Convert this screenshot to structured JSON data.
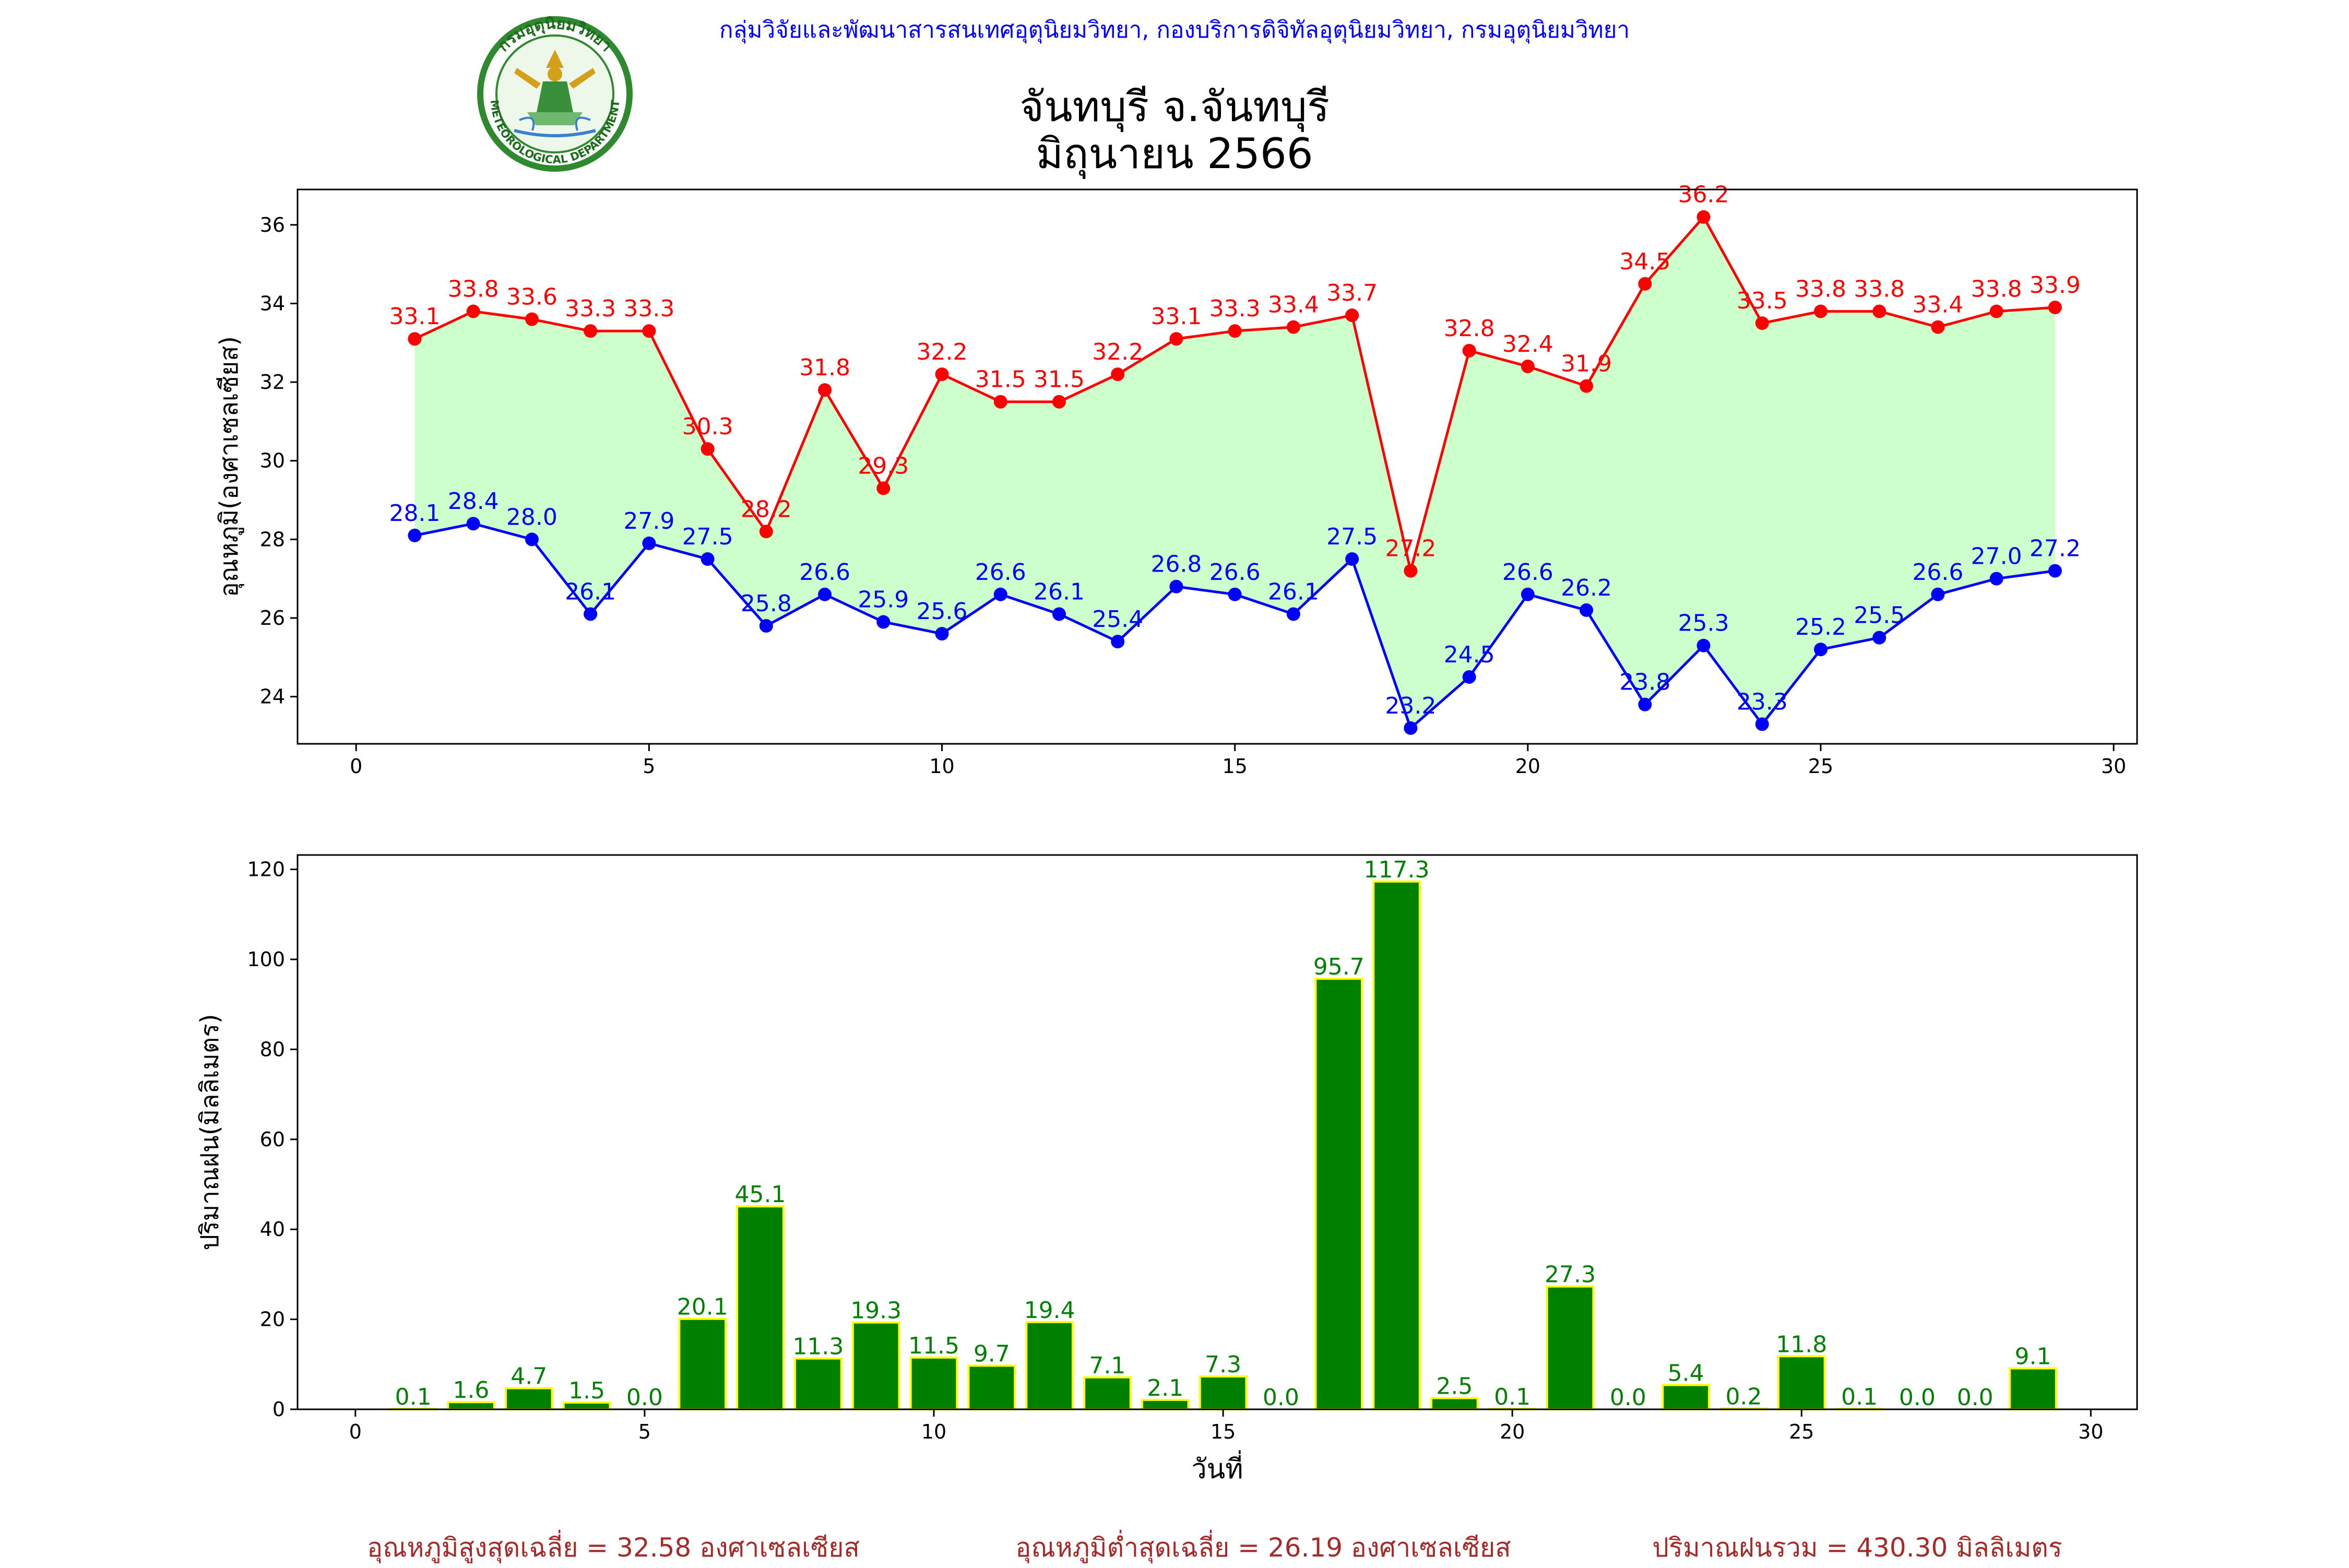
{
  "header": {
    "agency_line": "กลุ่มวิจัยและพัฒนาสารสนเทศอุตุนิยมวิทยา, กองบริการดิจิทัลอุตุนิยมวิทยา, กรมอุตุนิยมวิทยา",
    "title_line1": "จันทบุรี จ.จันทบุรี",
    "title_line2": "มิถุนายน 2566",
    "logo": {
      "icon": "meteorological-department-seal",
      "text_top": "กรมอุตุนิยมวิทยา",
      "text_bottom": "METEOROLOGICAL DEPARTMENT"
    }
  },
  "colors": {
    "header_text": "#0000ff",
    "max_temp": "#ff0000",
    "min_temp": "#0000ff",
    "band_fill": "#ccffcc",
    "bar_fill": "#008000",
    "bar_edge": "#ffff00",
    "rain_label": "#008000",
    "footer_text": "#a52a2a"
  },
  "chart_data": [
    {
      "type": "line",
      "ylabel": "อุณหภูมิ(องศาเซลเซียส)",
      "xlabel": "",
      "xlim": [
        -1,
        30.4
      ],
      "ylim": [
        22.8,
        36.9
      ],
      "xticks": [
        0,
        5,
        10,
        15,
        20,
        25,
        30
      ],
      "yticks": [
        24,
        26,
        28,
        30,
        32,
        34,
        36
      ],
      "x": [
        1,
        2,
        3,
        4,
        5,
        6,
        7,
        8,
        9,
        10,
        11,
        12,
        13,
        14,
        15,
        16,
        17,
        18,
        19,
        20,
        21,
        22,
        23,
        24,
        25,
        26,
        27,
        28,
        29
      ],
      "series": [
        {
          "key": "max",
          "values": [
            33.1,
            33.8,
            33.6,
            33.3,
            33.3,
            30.3,
            28.2,
            31.8,
            29.3,
            32.2,
            31.5,
            31.5,
            32.2,
            33.1,
            33.3,
            33.4,
            33.7,
            27.2,
            32.8,
            32.4,
            31.9,
            34.5,
            36.2,
            33.5,
            33.8,
            33.8,
            33.4,
            33.8,
            33.9
          ]
        },
        {
          "key": "min",
          "values": [
            28.1,
            28.4,
            28.0,
            26.1,
            27.9,
            27.5,
            25.8,
            26.6,
            25.9,
            25.6,
            26.6,
            26.1,
            25.4,
            26.8,
            26.6,
            26.1,
            27.5,
            23.2,
            24.5,
            26.6,
            26.2,
            23.8,
            25.3,
            23.3,
            25.2,
            25.5,
            26.6,
            27.0,
            27.2
          ]
        }
      ]
    },
    {
      "type": "bar",
      "ylabel": "ปริมาณฝน(มิลลิเมตร)",
      "xlabel": "วันที่",
      "xlim": [
        -1,
        30.8
      ],
      "ylim": [
        0,
        123.2
      ],
      "xticks": [
        0,
        5,
        10,
        15,
        20,
        25,
        30
      ],
      "yticks": [
        0,
        20,
        40,
        60,
        80,
        100,
        120
      ],
      "x": [
        1,
        2,
        3,
        4,
        5,
        6,
        7,
        8,
        9,
        10,
        11,
        12,
        13,
        14,
        15,
        16,
        17,
        18,
        19,
        20,
        21,
        22,
        23,
        24,
        25,
        26,
        27,
        28,
        29
      ],
      "values": [
        0.1,
        1.6,
        4.7,
        1.5,
        0.0,
        20.1,
        45.1,
        11.3,
        19.3,
        11.5,
        9.7,
        19.4,
        7.1,
        2.1,
        7.3,
        0.0,
        95.7,
        117.3,
        2.5,
        0.1,
        27.3,
        0.0,
        5.4,
        0.2,
        11.8,
        0.1,
        0.0,
        0.0,
        9.1
      ]
    }
  ],
  "footer": {
    "max_avg": "อุณหภูมิสูงสุดเฉลี่ย = 32.58 องศาเซลเซียส",
    "min_avg": "อุณหภูมิต่ำสุดเฉลี่ย = 26.19 องศาเซลเซียส",
    "rain_total": "ปริมาณฝนรวม = 430.30 มิลลิเมตร"
  }
}
